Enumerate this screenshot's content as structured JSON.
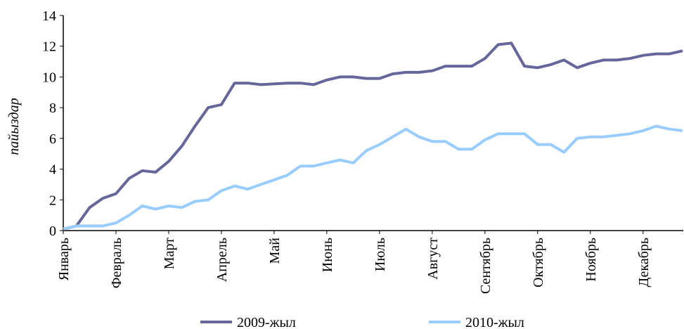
{
  "chart_data": {
    "type": "line",
    "y_label": "пайыздар",
    "categories": [
      "Январь",
      null,
      null,
      null,
      "Февраль",
      null,
      null,
      null,
      "Март",
      null,
      null,
      null,
      "Апрель",
      null,
      null,
      null,
      "Май",
      null,
      null,
      null,
      "Июнь",
      null,
      null,
      null,
      "Июль",
      null,
      null,
      null,
      "Август",
      null,
      null,
      null,
      "Сентябрь",
      null,
      null,
      null,
      "Октябрь",
      null,
      null,
      null,
      "Ноябрь",
      null,
      null,
      null,
      "Декабрь",
      null,
      null,
      null
    ],
    "series": [
      {
        "name": "2009-жыл",
        "color": "#66669a",
        "values": [
          0.1,
          0.3,
          1.5,
          2.1,
          2.4,
          3.4,
          3.9,
          3.8,
          4.5,
          5.5,
          6.8,
          8.0,
          8.2,
          9.6,
          9.6,
          9.5,
          9.55,
          9.6,
          9.6,
          9.5,
          9.8,
          10.0,
          10.0,
          9.9,
          9.9,
          10.2,
          10.3,
          10.3,
          10.4,
          10.7,
          10.7,
          10.7,
          11.2,
          12.1,
          12.2,
          10.7,
          10.6,
          10.8,
          11.1,
          10.6,
          10.9,
          11.1,
          11.1,
          11.2,
          11.4,
          11.5,
          11.5,
          11.7
        ]
      },
      {
        "name": "2010-жыл",
        "color": "#99ccff",
        "values": [
          0.1,
          0.3,
          0.3,
          0.3,
          0.5,
          1.0,
          1.6,
          1.4,
          1.6,
          1.5,
          1.9,
          2.0,
          2.6,
          2.9,
          2.7,
          3.0,
          3.3,
          3.6,
          4.2,
          4.2,
          4.4,
          4.6,
          4.4,
          5.2,
          5.6,
          6.1,
          6.6,
          6.1,
          5.8,
          5.8,
          5.3,
          5.3,
          5.9,
          6.3,
          6.3,
          6.3,
          5.6,
          5.6,
          5.1,
          6.0,
          6.1,
          6.1,
          6.2,
          6.3,
          6.5,
          6.8,
          6.6,
          6.5
        ]
      }
    ],
    "ylim": [
      0,
      14
    ],
    "yticks": [
      0,
      2,
      4,
      6,
      8,
      10,
      12,
      14
    ],
    "grid": false
  }
}
